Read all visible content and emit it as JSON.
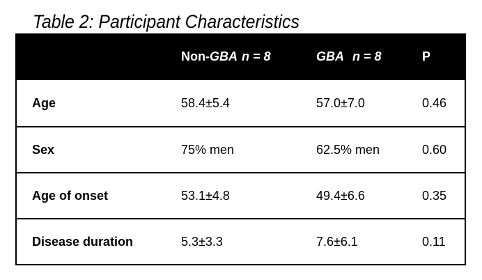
{
  "caption": "Table 2: Participant Characteristics",
  "table": {
    "headers": {
      "col0": "",
      "col1_prefix": "Non-",
      "col1_gene": "GBA",
      "col1_n": "n = 8",
      "col2_gene": "GBA",
      "col2_n": "n = 8",
      "col3": "P"
    },
    "rows": [
      {
        "label": "Age",
        "non_gba": "58.4±5.4",
        "gba": "57.0±7.0",
        "p": "0.46"
      },
      {
        "label": "Sex",
        "non_gba": "75% men",
        "gba": "62.5% men",
        "p": "0.60"
      },
      {
        "label": "Age of onset",
        "non_gba": "53.1±4.8",
        "gba": "49.4±6.6",
        "p": "0.35"
      },
      {
        "label": "Disease duration",
        "non_gba": "5.3±3.3",
        "gba": "7.6±6.1",
        "p": "0.11"
      }
    ]
  }
}
